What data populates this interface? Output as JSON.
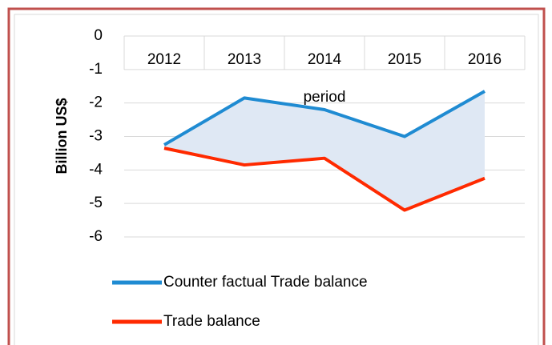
{
  "chart_data": {
    "type": "line",
    "x_label": "period",
    "y_label": "Billion US$",
    "categories": [
      "2012",
      "2013",
      "2014",
      "2015",
      "2016"
    ],
    "series": [
      {
        "name": "Counter factual Trade balance",
        "color": "#1f8bd2",
        "values": [
          -3.25,
          -1.85,
          -2.2,
          -3.0,
          -1.65
        ]
      },
      {
        "name": "Trade balance",
        "color": "#ff2a00",
        "values": [
          -3.35,
          -3.85,
          -3.65,
          -5.2,
          -4.25
        ]
      }
    ],
    "area_color": "#dfe8f4",
    "ylim": [
      -6,
      0
    ],
    "yticks": [
      0,
      -1,
      -2,
      -3,
      -4,
      -5,
      -6
    ],
    "grid": true
  }
}
